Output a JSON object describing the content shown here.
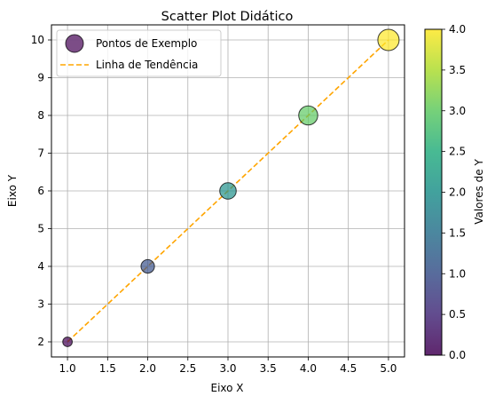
{
  "chart_data": {
    "type": "scatter",
    "title": "Scatter Plot Didático",
    "xlabel": "Eixo X",
    "ylabel": "Eixo Y",
    "xlim": [
      0.8,
      5.2
    ],
    "ylim": [
      1.6,
      10.4
    ],
    "xticks": [
      "1.0",
      "1.5",
      "2.0",
      "2.5",
      "3.0",
      "3.5",
      "4.0",
      "4.5",
      "5.0"
    ],
    "yticks": [
      "2",
      "3",
      "4",
      "5",
      "6",
      "7",
      "8",
      "9",
      "10"
    ],
    "grid": true,
    "legend_position": "top-left",
    "series": [
      {
        "name": "Pontos de Exemplo",
        "kind": "scatter",
        "x": [
          1,
          2,
          3,
          4,
          5
        ],
        "y": [
          2,
          4,
          6,
          8,
          10
        ],
        "color_values": [
          0,
          1,
          2,
          3,
          4
        ],
        "marker_sizes": [
          20,
          40,
          60,
          80,
          100
        ],
        "colormap": "viridis",
        "alpha": 0.7
      },
      {
        "name": "Linha de Tendência",
        "kind": "line",
        "style": "dashed",
        "color": "#ffa500",
        "x": [
          1,
          2,
          3,
          4,
          5
        ],
        "y": [
          2,
          4,
          6,
          8,
          10
        ]
      }
    ],
    "colorbar": {
      "label": "Valores de Y",
      "range": [
        0,
        4
      ],
      "ticks": [
        "0.0",
        "0.5",
        "1.0",
        "1.5",
        "2.0",
        "2.5",
        "3.0",
        "3.5",
        "4.0"
      ],
      "colormap": "viridis"
    }
  }
}
